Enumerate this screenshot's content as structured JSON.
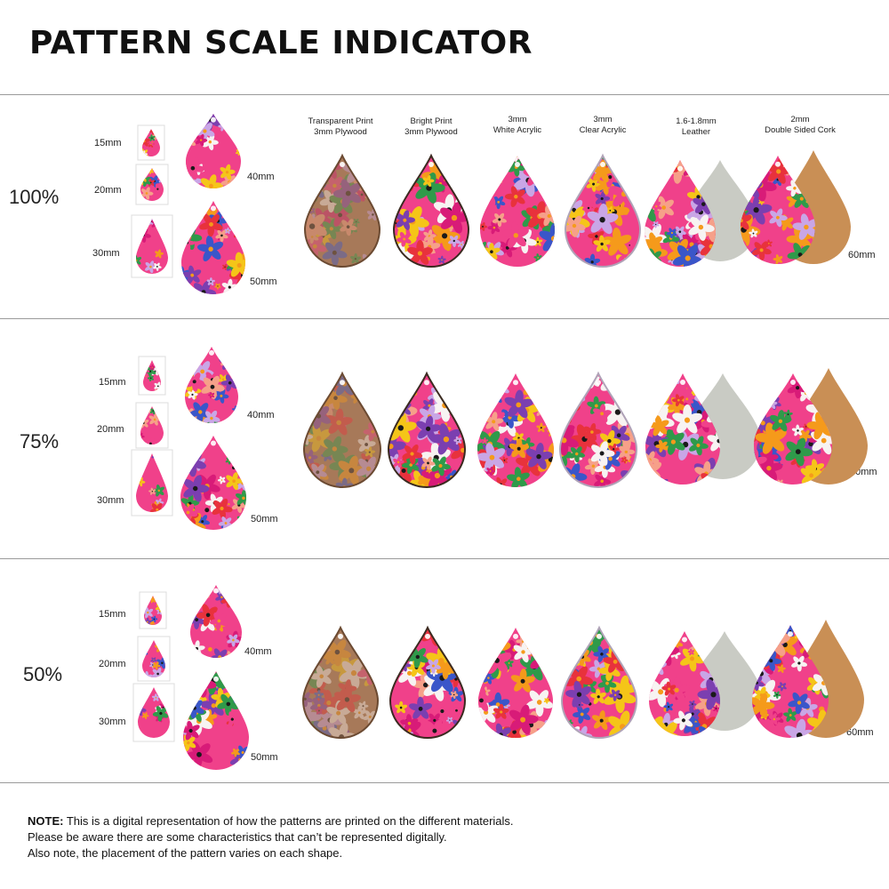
{
  "title": "PATTERN SCALE INDICATOR",
  "columns": [
    {
      "line1": "Transparent Print",
      "line2": "3mm Plywood",
      "material": "plywood-transparent"
    },
    {
      "line1": "Bright Print",
      "line2": "3mm Plywood",
      "material": "plywood-bright"
    },
    {
      "line1": "3mm",
      "line2": "White Acrylic",
      "material": "acrylic-white"
    },
    {
      "line1": "3mm",
      "line2": "Clear Acrylic",
      "material": "acrylic-clear"
    },
    {
      "line1": "1.6-1.8mm",
      "line2": "Leather",
      "material": "leather"
    },
    {
      "line1": "2mm",
      "line2": "Double Sided Cork",
      "material": "cork"
    }
  ],
  "rows": [
    {
      "scale": "100%",
      "sizes": {
        "s15": "15mm",
        "s20": "20mm",
        "s30": "30mm",
        "s40": "40mm",
        "s50": "50mm",
        "s60": "60mm"
      }
    },
    {
      "scale": "75%",
      "sizes": {
        "s15": "15mm",
        "s20": "20mm",
        "s30": "30mm",
        "s40": "40mm",
        "s50": "50mm",
        "s60": "60mm"
      }
    },
    {
      "scale": "50%",
      "sizes": {
        "s15": "15mm",
        "s20": "20mm",
        "s30": "30mm",
        "s40": "40mm",
        "s50": "50mm",
        "s60": "60mm"
      }
    }
  ],
  "note": {
    "label": "NOTE:",
    "line1": " This is a digital representation of how the patterns are printed on the different materials.",
    "line2": "Please be aware there are some characteristics that can’t be represented digitally.",
    "line3": "Also note, the placement of the pattern varies on each shape."
  },
  "colors": {
    "pink": "#f0418a",
    "magenta": "#d81b78",
    "red": "#e8323c",
    "orange": "#f59a1b",
    "yellow": "#f5c518",
    "lavender": "#c9a6e6",
    "purple": "#7b3fb0",
    "blue": "#3a56c9",
    "green": "#2f9a4a",
    "white": "#f7f3f2",
    "black": "#1a1a1a",
    "peach": "#f6a089",
    "leather": "#c9cbc4",
    "cork": "#c98f55",
    "plywood": "#a87a5a"
  }
}
